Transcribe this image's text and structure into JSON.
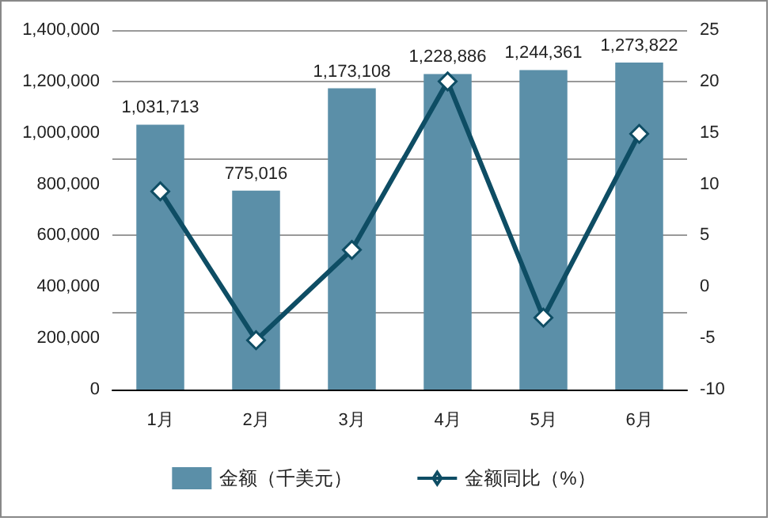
{
  "chart_data": {
    "type": "bar",
    "categories": [
      "1月",
      "2月",
      "3月",
      "4月",
      "5月",
      "6月"
    ],
    "series": [
      {
        "name": "金额（千美元）",
        "color": "#5b8fa8",
        "values": [
          1031713,
          775016,
          1173108,
          1228886,
          1244361,
          1273822
        ],
        "value_labels": [
          "1,031,713",
          "775,016",
          "1,173,108",
          "1,228,886",
          "1,244,361",
          "1,273,822"
        ]
      },
      {
        "name": "金额同比（%）",
        "type": "line",
        "axis": "y2",
        "color": "#0e4d64",
        "values": [
          9.3,
          -5.2,
          3.6,
          20,
          -3.0,
          14.9
        ],
        "marker": "diamond"
      }
    ],
    "ylim": [
      0,
      1400000
    ],
    "yticks": [
      0,
      {
        "value": 200000,
        "label": "200,000"
      },
      {
        "value": 400000,
        "label": "400,000"
      },
      {
        "value": 600000,
        "label": "600,000"
      },
      {
        "value": 800000,
        "label": "800,000"
      },
      {
        "value": 1000000,
        "label": "1,000,000"
      },
      {
        "value": 1200000,
        "label": "1,200,000"
      },
      {
        "value": 1400000,
        "label": "1,400,000"
      }
    ],
    "y2lim": [
      -10,
      25
    ],
    "y2ticks": [
      -10,
      -5,
      0,
      5,
      10,
      15,
      20,
      25
    ],
    "grid": "y",
    "legend": "bottom"
  }
}
